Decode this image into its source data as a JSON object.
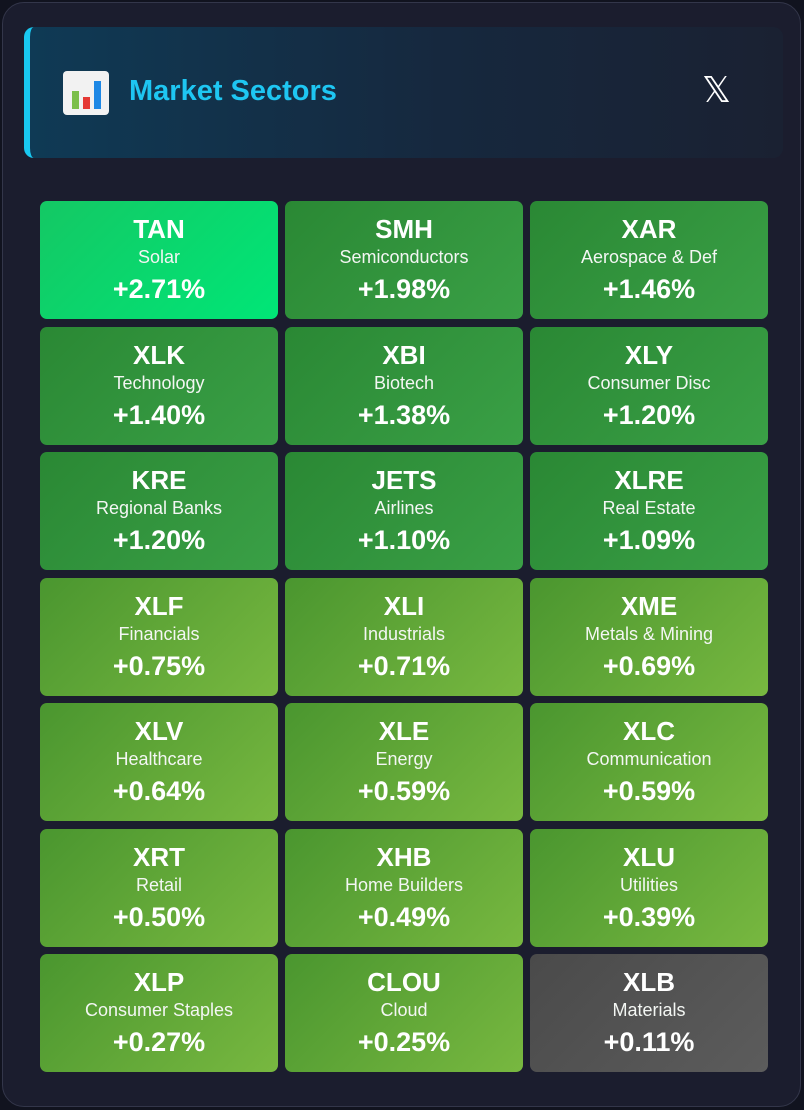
{
  "header": {
    "title": "Market Sectors",
    "icon": "bar-chart-icon",
    "close_icon": "x-logo-icon",
    "close_glyph": "𝕏",
    "accent_color": "#1ec6f2"
  },
  "colors": {
    "solar": "#00e677",
    "strong_gain": "#3aa046",
    "moderate_gain": "#78b840",
    "flat": "#555555"
  },
  "sectors": [
    {
      "ticker": "TAN",
      "name": "Solar",
      "change": "+2.71%",
      "level": "solar"
    },
    {
      "ticker": "SMH",
      "name": "Semiconductors",
      "change": "+1.98%",
      "level": "high"
    },
    {
      "ticker": "XAR",
      "name": "Aerospace & Def",
      "change": "+1.46%",
      "level": "high"
    },
    {
      "ticker": "XLK",
      "name": "Technology",
      "change": "+1.40%",
      "level": "high"
    },
    {
      "ticker": "XBI",
      "name": "Biotech",
      "change": "+1.38%",
      "level": "high"
    },
    {
      "ticker": "XLY",
      "name": "Consumer Disc",
      "change": "+1.20%",
      "level": "high"
    },
    {
      "ticker": "KRE",
      "name": "Regional Banks",
      "change": "+1.20%",
      "level": "high"
    },
    {
      "ticker": "JETS",
      "name": "Airlines",
      "change": "+1.10%",
      "level": "high"
    },
    {
      "ticker": "XLRE",
      "name": "Real Estate",
      "change": "+1.09%",
      "level": "high"
    },
    {
      "ticker": "XLF",
      "name": "Financials",
      "change": "+0.75%",
      "level": "mid"
    },
    {
      "ticker": "XLI",
      "name": "Industrials",
      "change": "+0.71%",
      "level": "mid"
    },
    {
      "ticker": "XME",
      "name": "Metals & Mining",
      "change": "+0.69%",
      "level": "mid"
    },
    {
      "ticker": "XLV",
      "name": "Healthcare",
      "change": "+0.64%",
      "level": "mid"
    },
    {
      "ticker": "XLE",
      "name": "Energy",
      "change": "+0.59%",
      "level": "mid"
    },
    {
      "ticker": "XLC",
      "name": "Communication",
      "change": "+0.59%",
      "level": "mid"
    },
    {
      "ticker": "XRT",
      "name": "Retail",
      "change": "+0.50%",
      "level": "mid"
    },
    {
      "ticker": "XHB",
      "name": "Home Builders",
      "change": "+0.49%",
      "level": "mid"
    },
    {
      "ticker": "XLU",
      "name": "Utilities",
      "change": "+0.39%",
      "level": "mid"
    },
    {
      "ticker": "XLP",
      "name": "Consumer Staples",
      "change": "+0.27%",
      "level": "mid"
    },
    {
      "ticker": "CLOU",
      "name": "Cloud",
      "change": "+0.25%",
      "level": "mid"
    },
    {
      "ticker": "XLB",
      "name": "Materials",
      "change": "+0.11%",
      "level": "flat"
    }
  ]
}
